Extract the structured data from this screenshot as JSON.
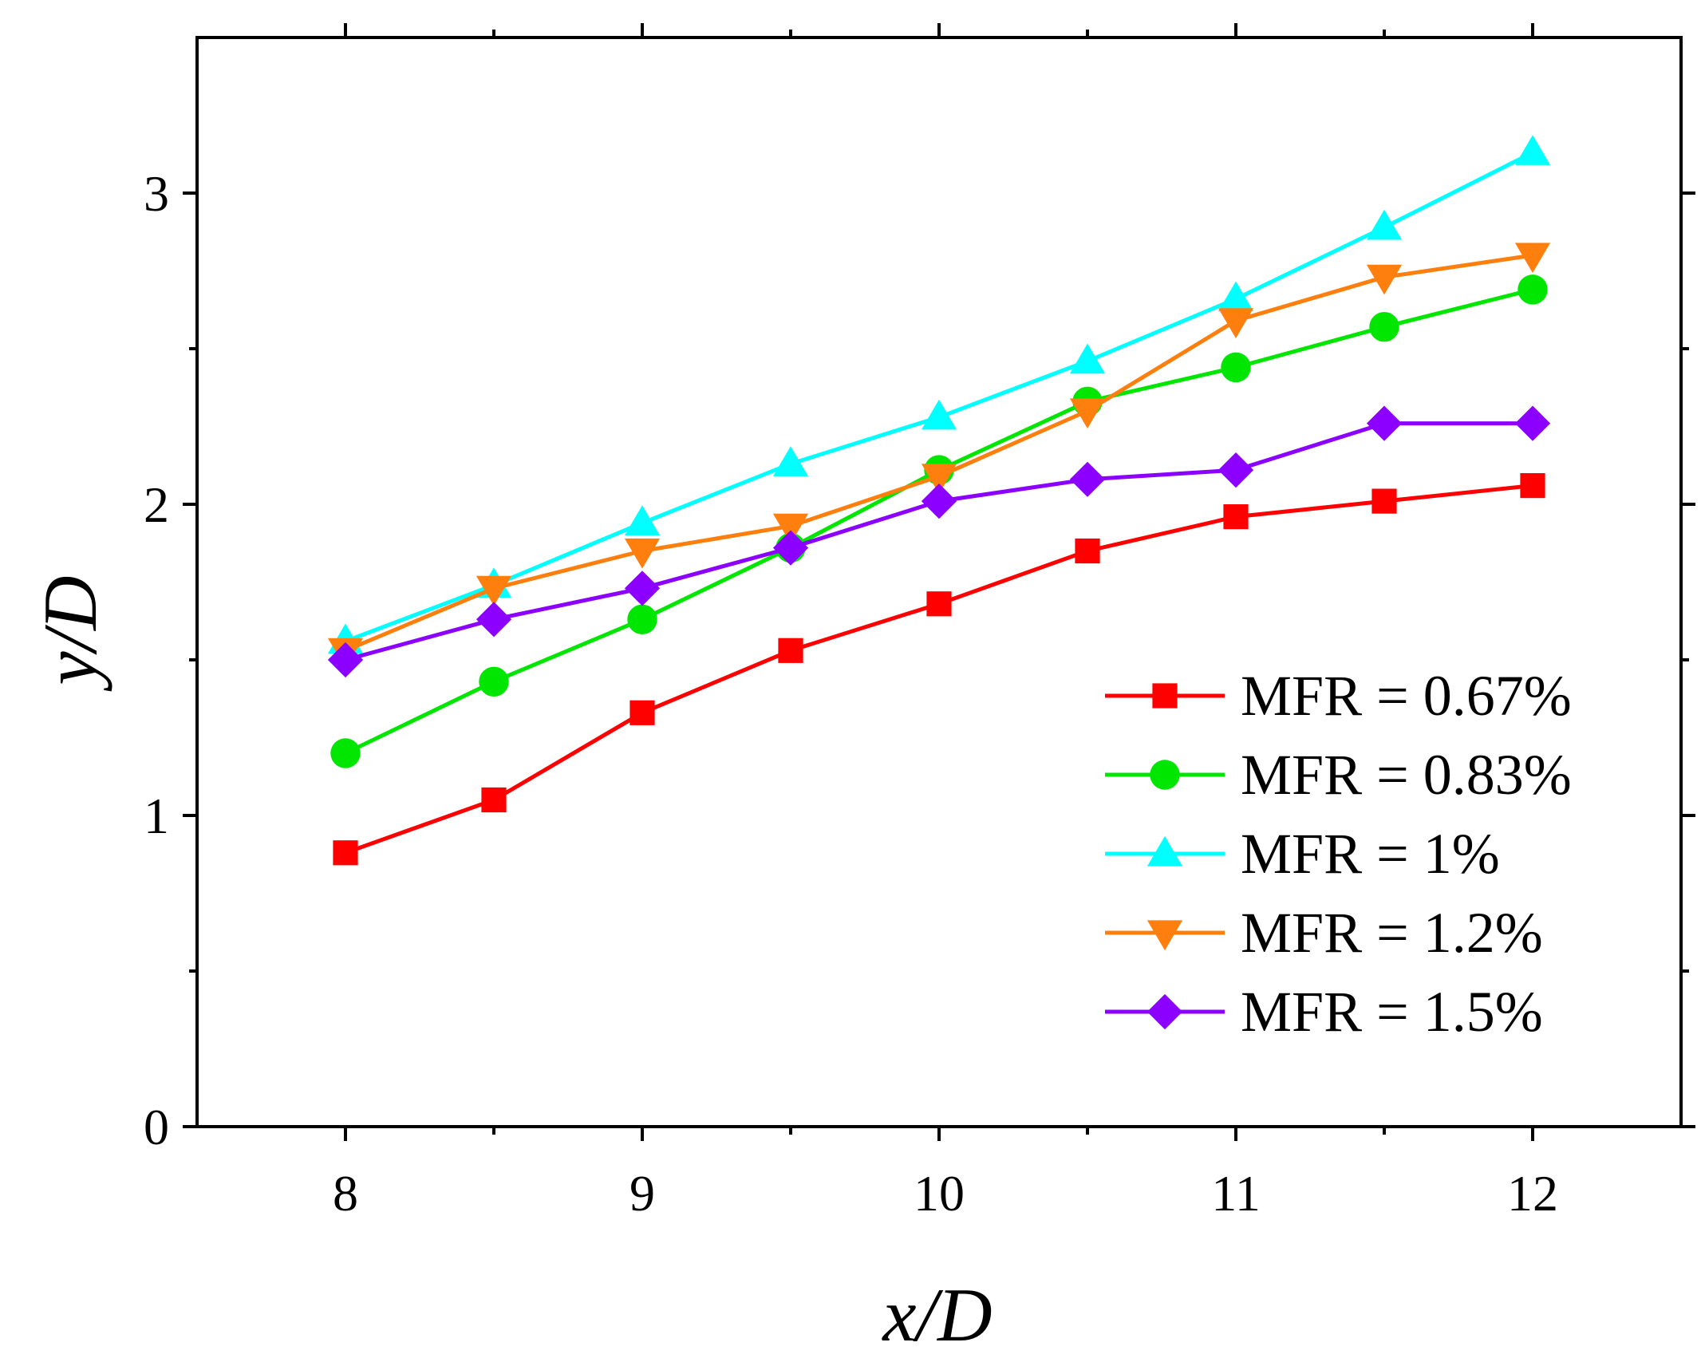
{
  "chart_data": {
    "type": "line",
    "title": "",
    "xlabel": "x/D",
    "ylabel": "y/D",
    "xlim": [
      7.5,
      12.5
    ],
    "ylim": [
      0,
      3.5
    ],
    "x_major_ticks": [
      8,
      9,
      10,
      11,
      12
    ],
    "x_minor_ticks": [
      8.5,
      9.5,
      10.5,
      11.5
    ],
    "y_major_ticks": [
      0,
      1,
      2,
      3
    ],
    "y_minor_ticks": [
      0.5,
      1.5,
      2.5
    ],
    "x_tick_labels": [
      "8",
      "9",
      "10",
      "11",
      "12"
    ],
    "y_tick_labels": [
      "0",
      "1",
      "2",
      "3"
    ],
    "legend_position": "lower-right",
    "grid": false,
    "x": [
      8,
      8.5,
      9,
      9.5,
      10,
      10.5,
      11,
      11.5,
      12
    ],
    "series": [
      {
        "name": "MFR = 0.67%",
        "color": "#ff0000",
        "marker": "square",
        "values": [
          0.88,
          1.05,
          1.33,
          1.53,
          1.68,
          1.85,
          1.96,
          2.01,
          2.06
        ]
      },
      {
        "name": "MFR = 0.83%",
        "color": "#00e600",
        "marker": "circle",
        "values": [
          1.2,
          1.43,
          1.63,
          1.86,
          2.11,
          2.33,
          2.44,
          2.57,
          2.69
        ]
      },
      {
        "name": "MFR = 1%",
        "color": "#00ffff",
        "marker": "triangle-up",
        "values": [
          1.56,
          1.74,
          1.94,
          2.13,
          2.28,
          2.46,
          2.66,
          2.89,
          3.13
        ]
      },
      {
        "name": "MFR = 1.2%",
        "color": "#ff7f0e",
        "marker": "triangle-down",
        "values": [
          1.53,
          1.73,
          1.85,
          1.93,
          2.09,
          2.3,
          2.59,
          2.73,
          2.8
        ]
      },
      {
        "name": "MFR = 1.5%",
        "color": "#8b00ff",
        "marker": "diamond",
        "values": [
          1.5,
          1.63,
          1.73,
          1.86,
          2.01,
          2.08,
          2.11,
          2.26,
          2.26
        ]
      }
    ]
  }
}
